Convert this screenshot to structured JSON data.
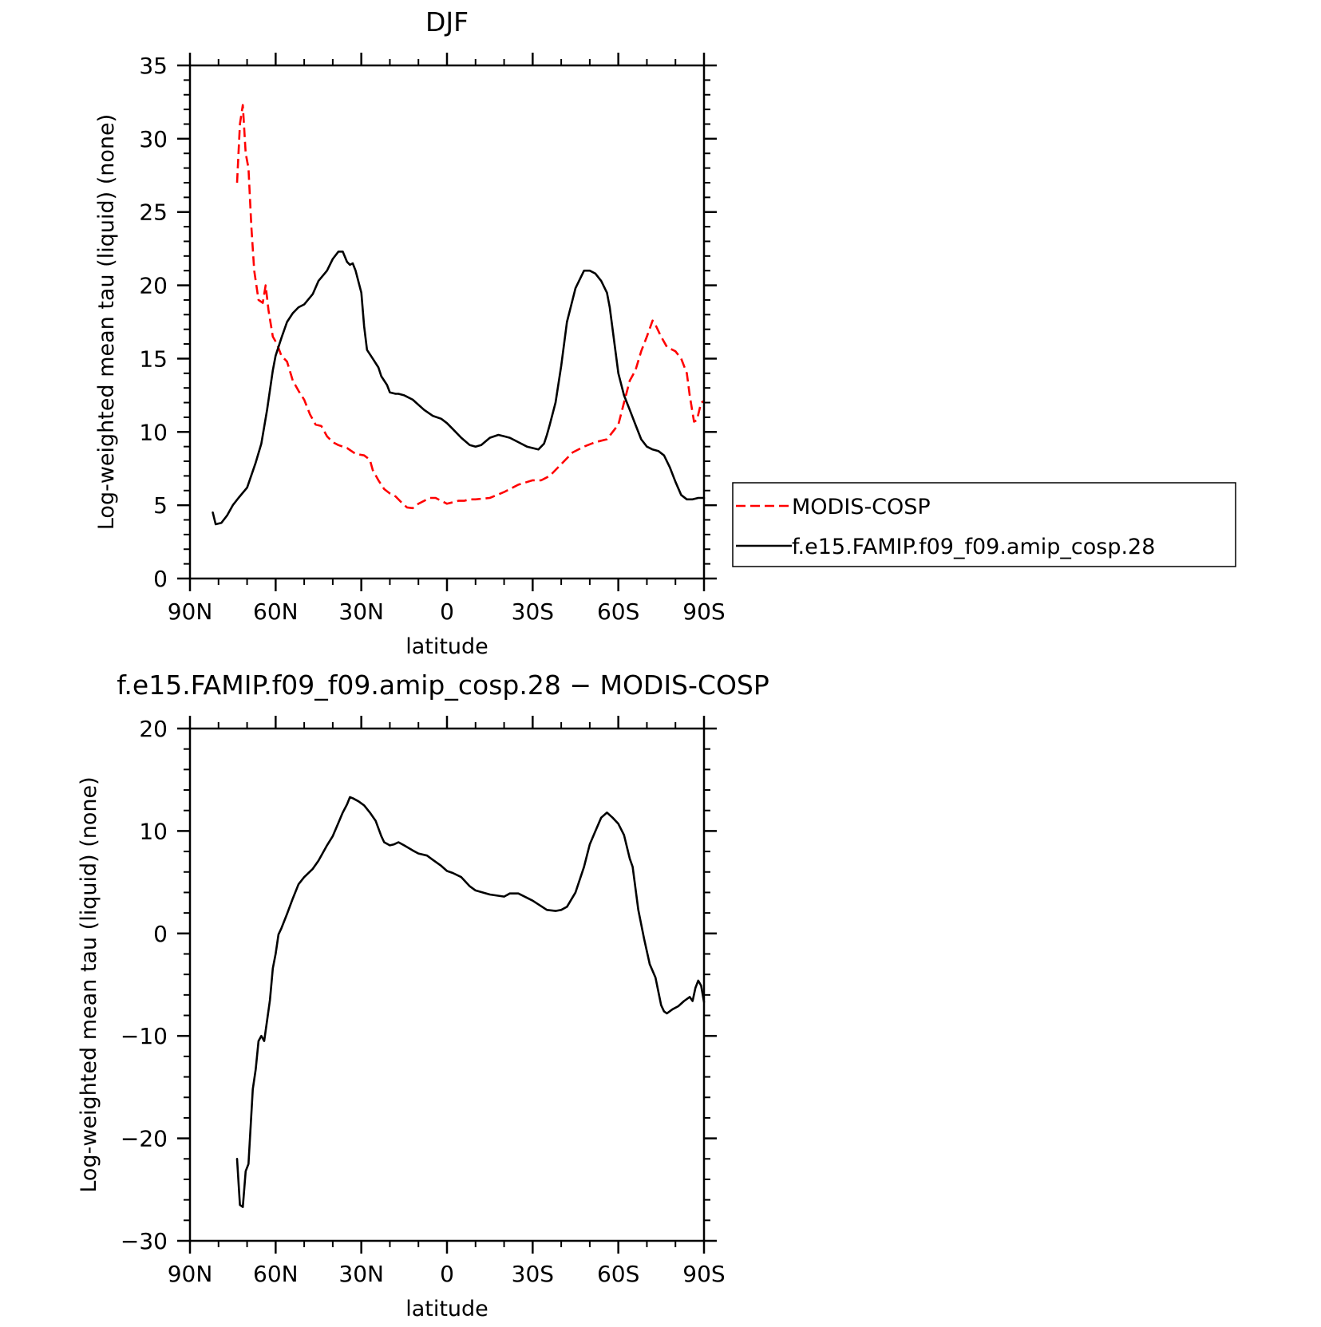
{
  "chart_data": [
    {
      "type": "line",
      "title": "DJF",
      "xlabel": "latitude",
      "ylabel": "Log-weighted mean tau (liquid) (none)",
      "xlim": [
        90,
        -90
      ],
      "ylim": [
        0,
        35
      ],
      "x_ticks": [
        90,
        60,
        30,
        0,
        -30,
        -60,
        -90
      ],
      "x_tick_labels": [
        "90N",
        "60N",
        "30N",
        "0",
        "30S",
        "60S",
        "90S"
      ],
      "y_ticks": [
        0,
        5,
        10,
        15,
        20,
        25,
        30,
        35
      ],
      "y_tick_labels": [
        "0",
        "5",
        "10",
        "15",
        "20",
        "25",
        "30",
        "35"
      ],
      "legend": {
        "placement": "right",
        "entries": [
          "MODIS-COSP",
          "f.e15.FAMIP.f09_f09.amip_cosp.28"
        ]
      },
      "series": [
        {
          "name": "MODIS-COSP",
          "color": "#ff0000",
          "style": "dashed",
          "x": [
            73.5,
            72.5,
            71.5,
            70.5,
            69.5,
            68.5,
            67.5,
            66,
            64.5,
            63.5,
            62.5,
            61,
            59.5,
            58,
            56,
            54,
            52,
            50,
            48,
            46,
            44,
            42,
            40,
            38,
            35,
            32,
            29,
            27,
            26,
            24,
            22,
            20,
            18,
            16,
            14,
            12,
            10,
            8,
            6,
            4,
            2,
            0,
            -2,
            -4,
            -6,
            -8,
            -10,
            -15,
            -20,
            -25,
            -30,
            -33,
            -36,
            -40,
            -44,
            -48,
            -52,
            -56,
            -60,
            -62,
            -64,
            -66,
            -68,
            -70,
            -72,
            -73,
            -75,
            -77,
            -78,
            -80,
            -82,
            -84,
            -85,
            -86.5,
            -87.5,
            -89,
            -90
          ],
          "values": [
            27,
            31,
            32.3,
            29,
            28,
            24,
            21,
            19,
            18.8,
            20,
            18.3,
            16.5,
            16,
            15.2,
            14.8,
            13.5,
            12.8,
            12.2,
            11.2,
            10.5,
            10.4,
            9.7,
            9.3,
            9.1,
            8.9,
            8.5,
            8.4,
            8.1,
            7.4,
            6.7,
            6.1,
            5.8,
            5.6,
            5.2,
            4.85,
            4.8,
            5.1,
            5.3,
            5.5,
            5.5,
            5.3,
            5.1,
            5.2,
            5.3,
            5.3,
            5.4,
            5.4,
            5.5,
            5.9,
            6.4,
            6.7,
            6.7,
            7.0,
            7.8,
            8.6,
            9.0,
            9.3,
            9.5,
            10.5,
            12,
            13.5,
            14.2,
            15.5,
            16.5,
            17.6,
            17.3,
            16.5,
            15.8,
            15.7,
            15.5,
            15.0,
            14.0,
            12.5,
            10.7,
            10.8,
            12.0,
            12.1
          ]
        },
        {
          "name": "f.e15.FAMIP.f09_f09.amip_cosp.28",
          "color": "#000000",
          "style": "solid",
          "x": [
            82,
            81,
            79,
            77,
            75,
            73,
            70,
            67,
            65,
            63,
            61,
            60,
            58,
            56,
            54,
            52,
            50,
            47,
            45,
            42,
            40,
            38,
            36.5,
            35,
            34,
            33,
            32,
            30,
            29,
            28,
            26,
            24,
            23,
            21,
            20,
            18,
            17,
            15,
            12,
            8,
            5,
            2,
            0,
            -2,
            -5,
            -8,
            -10,
            -12,
            -15,
            -18,
            -20,
            -22,
            -25,
            -28,
            -32,
            -34,
            -35,
            -36,
            -38,
            -40,
            -42,
            -45,
            -48,
            -50,
            -52,
            -54,
            -56,
            -57,
            -58,
            -60,
            -62,
            -64,
            -66,
            -68,
            -70,
            -72,
            -74,
            -76,
            -78,
            -80,
            -82,
            -84,
            -86,
            -88,
            -90
          ],
          "values": [
            4.5,
            3.7,
            3.8,
            4.3,
            5.0,
            5.5,
            6.2,
            7.9,
            9.2,
            11.5,
            14.2,
            15.2,
            16.4,
            17.5,
            18.1,
            18.5,
            18.7,
            19.4,
            20.3,
            21.0,
            21.8,
            22.3,
            22.3,
            21.6,
            21.4,
            21.5,
            21.0,
            19.5,
            17.2,
            15.6,
            15.0,
            14.4,
            13.8,
            13.2,
            12.7,
            12.6,
            12.6,
            12.5,
            12.2,
            11.5,
            11.1,
            10.9,
            10.6,
            10.2,
            9.6,
            9.1,
            9.0,
            9.1,
            9.6,
            9.8,
            9.7,
            9.6,
            9.3,
            9.0,
            8.8,
            9.2,
            9.8,
            10.5,
            12.0,
            14.5,
            17.5,
            19.8,
            21.0,
            21.0,
            20.8,
            20.3,
            19.5,
            18.5,
            17.0,
            14.0,
            12.5,
            11.5,
            10.5,
            9.5,
            9.0,
            8.8,
            8.7,
            8.4,
            7.6,
            6.6,
            5.7,
            5.4,
            5.4,
            5.5,
            5.5
          ]
        }
      ]
    },
    {
      "type": "line",
      "title": "f.e15.FAMIP.f09_f09.amip_cosp.28 − MODIS-COSP",
      "xlabel": "latitude",
      "ylabel": "Log-weighted mean tau (liquid) (none)",
      "xlim": [
        90,
        -90
      ],
      "ylim": [
        -30,
        20
      ],
      "x_ticks": [
        90,
        60,
        30,
        0,
        -30,
        -60,
        -90
      ],
      "x_tick_labels": [
        "90N",
        "60N",
        "30N",
        "0",
        "30S",
        "60S",
        "90S"
      ],
      "y_ticks": [
        -30,
        -20,
        -10,
        0,
        10,
        20
      ],
      "y_tick_labels": [
        "−30",
        "−20",
        "−10",
        "0",
        "10",
        "20"
      ],
      "series": [
        {
          "color": "#000000",
          "style": "solid",
          "x": [
            73.5,
            72.5,
            71.5,
            70.5,
            69.5,
            68,
            67,
            66,
            65,
            64,
            63,
            62,
            61,
            60,
            59,
            58,
            56,
            54,
            52,
            50,
            47,
            45,
            42,
            40,
            38,
            36.5,
            35,
            34,
            33,
            31,
            29,
            27,
            25,
            23,
            22,
            20,
            18.5,
            17,
            15,
            12,
            10,
            7,
            5,
            2,
            0,
            -2,
            -5,
            -8,
            -10,
            -15,
            -20,
            -22,
            -25,
            -30,
            -35,
            -38,
            -40,
            -42,
            -45,
            -48,
            -50,
            -52,
            -54,
            -56,
            -58,
            -60,
            -62,
            -64,
            -65,
            -67,
            -69,
            -71,
            -73,
            -75,
            -76,
            -77,
            -79,
            -81,
            -83,
            -85,
            -86,
            -87,
            -88,
            -89,
            -90
          ],
          "values": [
            -22,
            -26.5,
            -26.7,
            -23.2,
            -22.5,
            -15.2,
            -13.3,
            -10.5,
            -10.0,
            -10.5,
            -8.5,
            -6.5,
            -3.4,
            -2.0,
            -0.1,
            0.5,
            1.9,
            3.4,
            4.8,
            5.5,
            6.3,
            7.1,
            8.6,
            9.5,
            10.8,
            11.8,
            12.6,
            13.3,
            13.2,
            12.9,
            12.5,
            11.8,
            11.0,
            9.5,
            8.9,
            8.6,
            8.7,
            8.9,
            8.6,
            8.1,
            7.8,
            7.6,
            7.2,
            6.6,
            6.1,
            5.9,
            5.5,
            4.6,
            4.2,
            3.8,
            3.6,
            3.9,
            3.9,
            3.2,
            2.3,
            2.2,
            2.3,
            2.6,
            4.0,
            6.5,
            8.7,
            10.0,
            11.3,
            11.8,
            11.3,
            10.7,
            9.6,
            7.3,
            6.5,
            2.3,
            -0.5,
            -3.0,
            -4.3,
            -7.0,
            -7.6,
            -7.8,
            -7.4,
            -7.1,
            -6.6,
            -6.2,
            -6.6,
            -5.3,
            -4.6,
            -5.1,
            -6.7
          ]
        }
      ]
    }
  ]
}
